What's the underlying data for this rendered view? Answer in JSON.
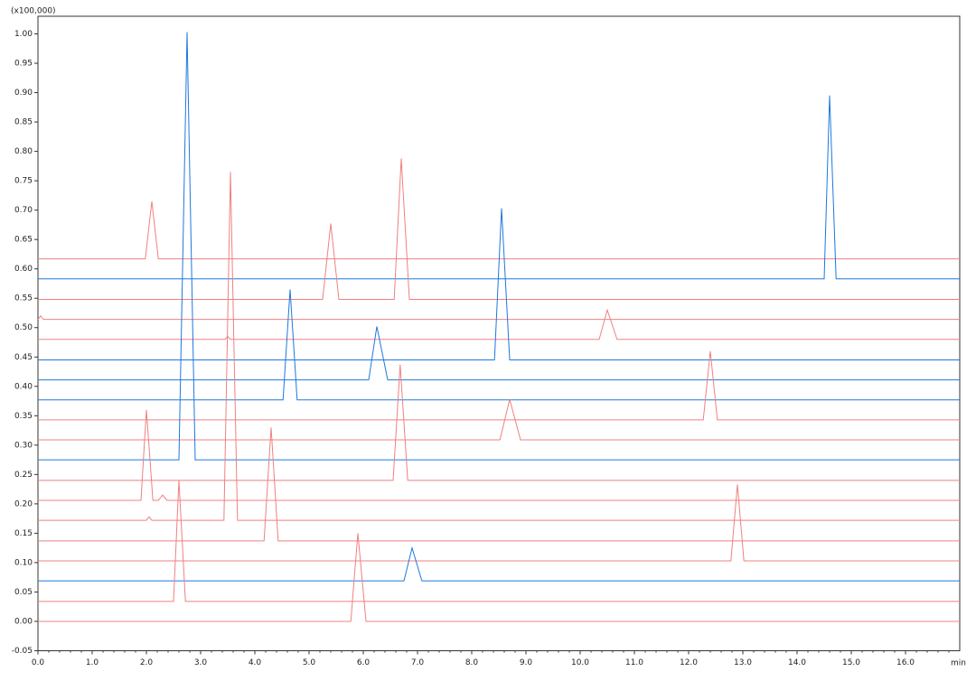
{
  "chart_data": {
    "type": "line",
    "y_multiplier": "(x100,000)",
    "x_label": "min",
    "xlim": [
      0,
      17
    ],
    "ylim": [
      -0.05,
      1.03
    ],
    "xticks": [
      {
        "value": 0,
        "label": "0.0"
      },
      {
        "value": 1,
        "label": "1.0"
      },
      {
        "value": 2,
        "label": "2.0"
      },
      {
        "value": 3,
        "label": "3.0"
      },
      {
        "value": 4,
        "label": "4.0"
      },
      {
        "value": 5,
        "label": "5.0"
      },
      {
        "value": 6,
        "label": "6.0"
      },
      {
        "value": 7,
        "label": "7.0"
      },
      {
        "value": 8,
        "label": "8.0"
      },
      {
        "value": 9,
        "label": "9.0"
      },
      {
        "value": 10,
        "label": "10.0"
      },
      {
        "value": 11,
        "label": "11.0"
      },
      {
        "value": 12,
        "label": "12.0"
      },
      {
        "value": 13,
        "label": "13.0"
      },
      {
        "value": 14,
        "label": "14.0"
      },
      {
        "value": 15,
        "label": "15.0"
      },
      {
        "value": 16,
        "label": "16.0"
      }
    ],
    "yticks": [
      {
        "value": 1.0,
        "label": "1.00"
      },
      {
        "value": 0.95,
        "label": "0.95"
      },
      {
        "value": 0.9,
        "label": "0.90"
      },
      {
        "value": 0.85,
        "label": "0.85"
      },
      {
        "value": 0.8,
        "label": "0.80"
      },
      {
        "value": 0.75,
        "label": "0.75"
      },
      {
        "value": 0.7,
        "label": "0.70"
      },
      {
        "value": 0.65,
        "label": "0.65"
      },
      {
        "value": 0.6,
        "label": "0.60"
      },
      {
        "value": 0.55,
        "label": "0.55"
      },
      {
        "value": 0.5,
        "label": "0.50"
      },
      {
        "value": 0.45,
        "label": "0.45"
      },
      {
        "value": 0.4,
        "label": "0.40"
      },
      {
        "value": 0.35,
        "label": "0.35"
      },
      {
        "value": 0.3,
        "label": "0.30"
      },
      {
        "value": 0.25,
        "label": "0.25"
      },
      {
        "value": 0.2,
        "label": "0.20"
      },
      {
        "value": 0.15,
        "label": "0.15"
      },
      {
        "value": 0.1,
        "label": "0.10"
      },
      {
        "value": 0.05,
        "label": "0.05"
      },
      {
        "value": 0,
        "label": "0.00"
      },
      {
        "value": -0.05,
        "label": "-0.05"
      }
    ],
    "series": [
      {
        "color": "#f08080",
        "x": [
          0,
          1.98,
          2.1,
          2.22,
          17
        ],
        "values": [
          0.617,
          0.617,
          0.715,
          0.617,
          0.617
        ]
      },
      {
        "color": "#1e78dc",
        "x": [
          0,
          14.5,
          14.6,
          14.72,
          17
        ],
        "values": [
          0.583,
          0.583,
          0.895,
          0.583,
          0.583
        ]
      },
      {
        "color": "#f08080",
        "x": [
          0,
          5.25,
          5.4,
          5.55,
          6.57,
          6.7,
          6.85,
          17
        ],
        "values": [
          0.548,
          0.548,
          0.677,
          0.548,
          0.548,
          0.788,
          0.548,
          0.548
        ]
      },
      {
        "color": "#f08080",
        "x": [
          0,
          0.05,
          0.1,
          17
        ],
        "values": [
          0.514,
          0.52,
          0.514,
          0.514
        ]
      },
      {
        "color": "#f08080",
        "x": [
          0,
          3.45,
          3.5,
          3.55,
          10.35,
          10.5,
          10.68,
          17
        ],
        "values": [
          0.48,
          0.48,
          0.485,
          0.48,
          0.48,
          0.53,
          0.48,
          0.48
        ]
      },
      {
        "color": "#1e78dc",
        "x": [
          0,
          8.42,
          8.55,
          8.7,
          17
        ],
        "values": [
          0.445,
          0.445,
          0.703,
          0.445,
          0.445
        ]
      },
      {
        "color": "#1e78dc",
        "x": [
          0,
          6.1,
          6.25,
          6.45,
          17
        ],
        "values": [
          0.411,
          0.411,
          0.502,
          0.411,
          0.411
        ]
      },
      {
        "color": "#1e78dc",
        "x": [
          0,
          4.52,
          4.65,
          4.78,
          17
        ],
        "values": [
          0.377,
          0.377,
          0.565,
          0.377,
          0.377
        ]
      },
      {
        "color": "#f08080",
        "x": [
          0,
          12.27,
          12.4,
          12.53,
          17
        ],
        "values": [
          0.343,
          0.343,
          0.46,
          0.343,
          0.343
        ]
      },
      {
        "color": "#f08080",
        "x": [
          0,
          8.52,
          8.7,
          8.9,
          17
        ],
        "values": [
          0.309,
          0.309,
          0.378,
          0.309,
          0.309
        ]
      },
      {
        "color": "#1e78dc",
        "x": [
          0,
          2.6,
          2.75,
          2.9,
          17
        ],
        "values": [
          0.275,
          0.275,
          1.003,
          0.275,
          0.275
        ]
      },
      {
        "color": "#f08080",
        "x": [
          0,
          6.55,
          6.68,
          6.82,
          17
        ],
        "values": [
          0.24,
          0.24,
          0.437,
          0.24,
          0.24
        ]
      },
      {
        "color": "#f08080",
        "x": [
          0,
          1.9,
          2.0,
          2.12,
          2.22,
          2.3,
          2.38,
          17
        ],
        "values": [
          0.206,
          0.206,
          0.36,
          0.206,
          0.206,
          0.215,
          0.206,
          0.206
        ]
      },
      {
        "color": "#f08080",
        "x": [
          0,
          2.0,
          2.05,
          2.1,
          3.43,
          3.55,
          3.68,
          17
        ],
        "values": [
          0.172,
          0.172,
          0.178,
          0.172,
          0.172,
          0.765,
          0.172,
          0.172
        ]
      },
      {
        "color": "#f08080",
        "x": [
          0,
          4.17,
          4.3,
          4.43,
          17
        ],
        "values": [
          0.137,
          0.137,
          0.33,
          0.137,
          0.137
        ]
      },
      {
        "color": "#f08080",
        "x": [
          0,
          12.78,
          12.9,
          13.02,
          17
        ],
        "values": [
          0.103,
          0.103,
          0.233,
          0.103,
          0.103
        ]
      },
      {
        "color": "#1e78dc",
        "x": [
          0,
          6.75,
          6.9,
          7.08,
          17
        ],
        "values": [
          0.069,
          0.069,
          0.125,
          0.069,
          0.069
        ]
      },
      {
        "color": "#f08080",
        "x": [
          0,
          2.5,
          2.6,
          2.72,
          17
        ],
        "values": [
          0.034,
          0.034,
          0.24,
          0.034,
          0.034
        ]
      },
      {
        "color": "#f08080",
        "x": [
          0,
          5.77,
          5.9,
          6.05,
          17
        ],
        "values": [
          0,
          0,
          0.15,
          0,
          0
        ]
      }
    ]
  }
}
